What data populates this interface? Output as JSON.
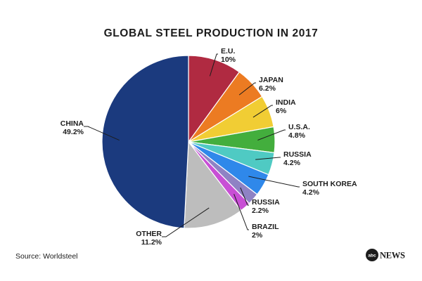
{
  "chart_data": {
    "type": "pie",
    "title": "GLOBAL STEEL PRODUCTION IN 2017",
    "unit": "%",
    "slices": [
      {
        "label": "E.U.",
        "value": 10,
        "display": "10%",
        "color": "#b02a41"
      },
      {
        "label": "JAPAN",
        "value": 6.2,
        "display": "6.2%",
        "color": "#ec7b22"
      },
      {
        "label": "INDIA",
        "value": 6,
        "display": "6%",
        "color": "#f1cd34"
      },
      {
        "label": "U.S.A.",
        "value": 4.8,
        "display": "4.8%",
        "color": "#43ae3d"
      },
      {
        "label": "RUSSIA",
        "value": 4.2,
        "display": "4.2%",
        "color": "#4fcac3"
      },
      {
        "label": "SOUTH KOREA",
        "value": 4.2,
        "display": "4.2%",
        "color": "#2f88ea"
      },
      {
        "label": "RUSSIA",
        "value": 2.2,
        "display": "2.2%",
        "color": "#8f82c4"
      },
      {
        "label": "BRAZIL",
        "value": 2,
        "display": "2%",
        "color": "#c84fd5"
      },
      {
        "label": "OTHER",
        "value": 11.2,
        "display": "11.2%",
        "color": "#bdbdbd"
      },
      {
        "label": "CHINA",
        "value": 49.2,
        "display": "49.2%",
        "color": "#1b3a7e"
      }
    ]
  },
  "source": "Source: Worldsteel",
  "logo": {
    "badge": "abc",
    "word": "NEWS"
  }
}
